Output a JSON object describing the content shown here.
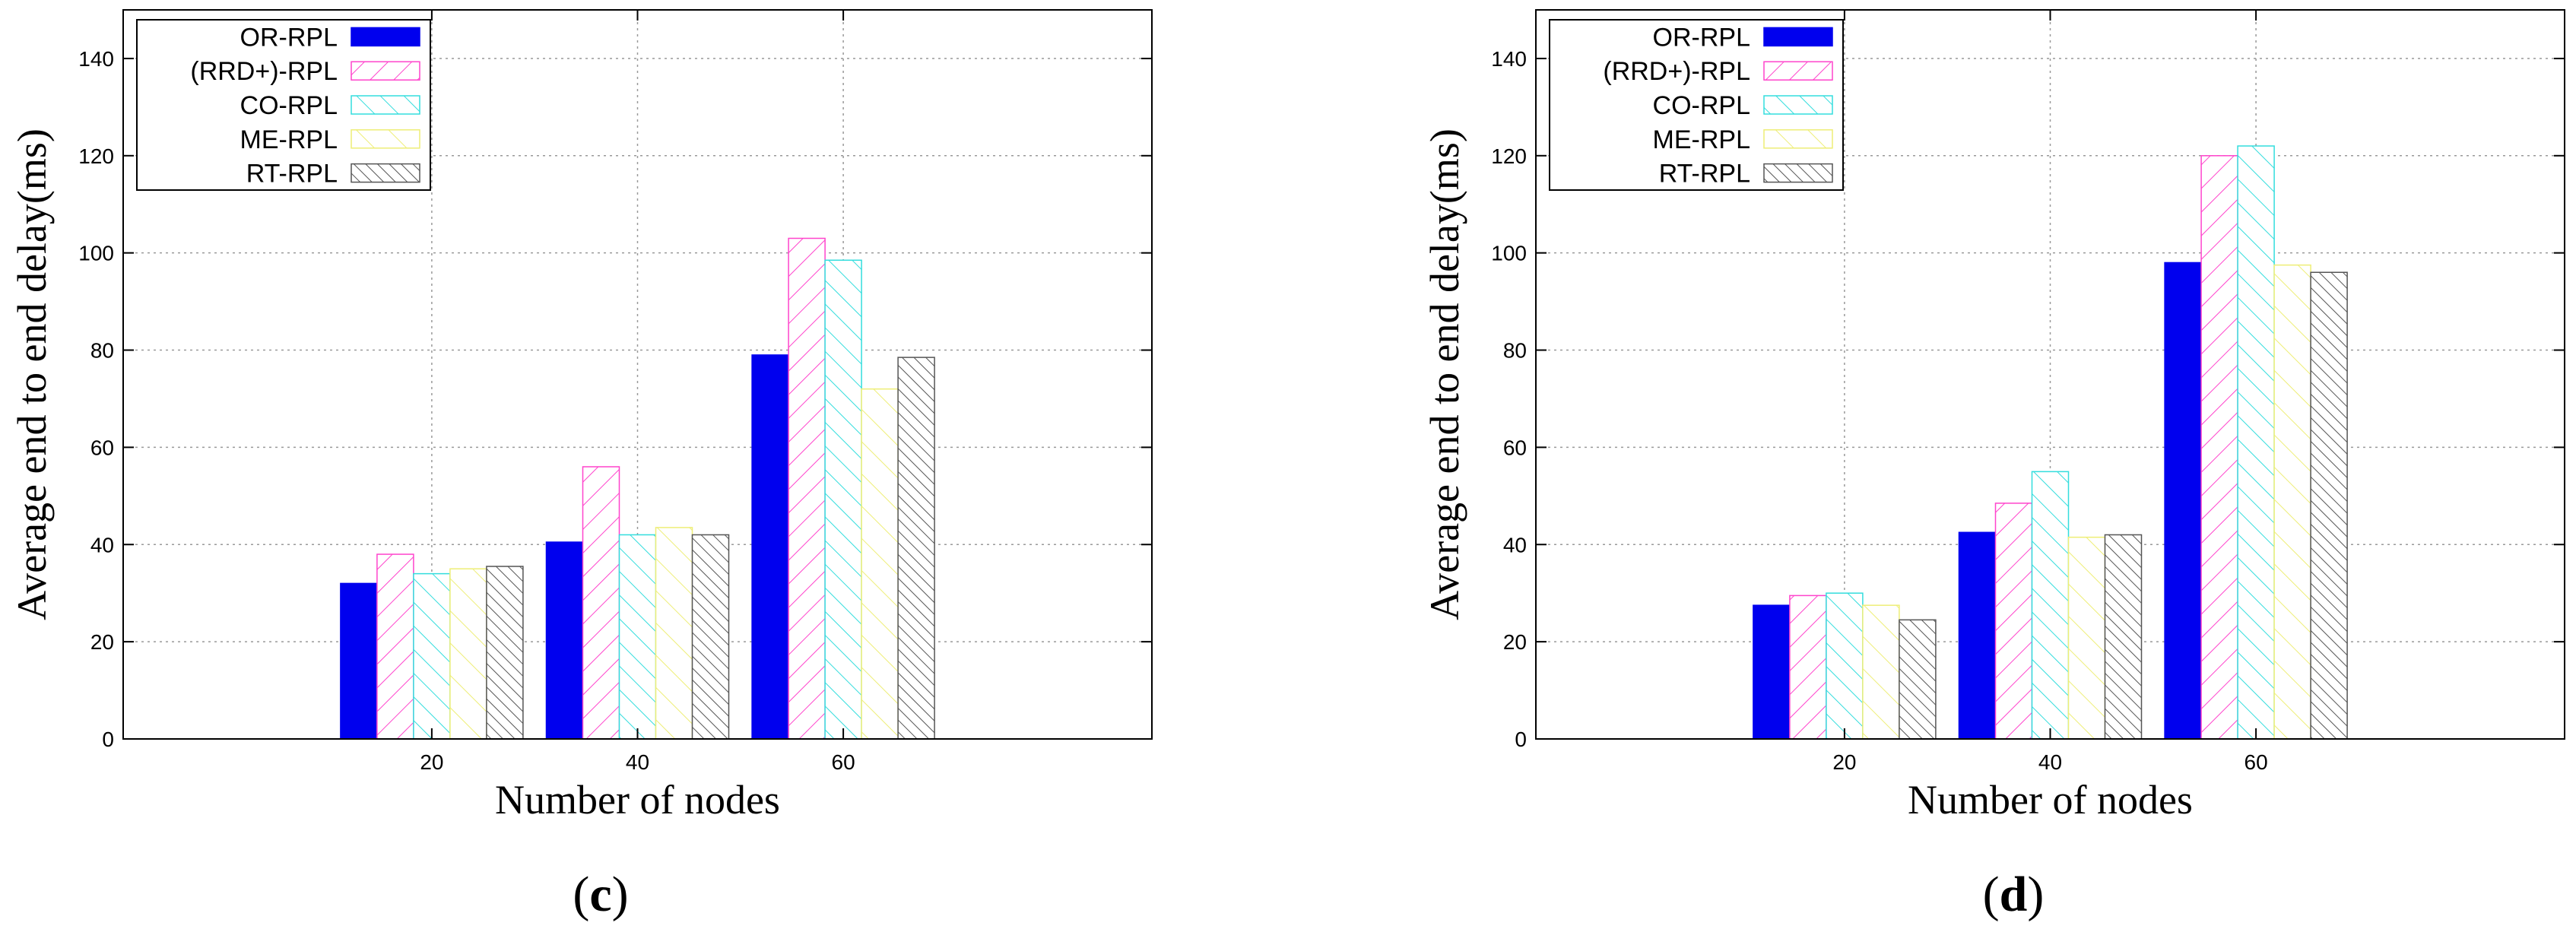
{
  "colors": {
    "OR-RPL": "#0000ee",
    "(RRD+)-RPL": "#ff44cc",
    "CO-RPL": "#33dddd",
    "ME-RPL": "#eeee77",
    "RT-RPL": "#555555"
  },
  "chart_data": [
    {
      "type": "bar",
      "panel_label": "c",
      "title": "",
      "xlabel": "Number of nodes",
      "ylabel": "Average end to end delay(ms)",
      "categories": [
        "20",
        "40",
        "60"
      ],
      "ylim": [
        0,
        150
      ],
      "yticks": [
        "0",
        "20",
        "40",
        "60",
        "80",
        "100",
        "120",
        "140"
      ],
      "grid": true,
      "legend_position": "top-left",
      "series": [
        {
          "name": "OR-RPL",
          "pattern": "solid",
          "values": [
            32,
            40.5,
            79
          ]
        },
        {
          "name": "(RRD+)-RPL",
          "pattern": "hatch-down",
          "values": [
            38,
            56,
            103
          ]
        },
        {
          "name": "CO-RPL",
          "pattern": "hatch-up",
          "values": [
            34,
            42,
            98.5
          ]
        },
        {
          "name": "ME-RPL",
          "pattern": "hatch-up-sparse",
          "values": [
            35,
            43.5,
            72
          ]
        },
        {
          "name": "RT-RPL",
          "pattern": "hatch-dense",
          "values": [
            35.5,
            42,
            78.5
          ]
        }
      ]
    },
    {
      "type": "bar",
      "panel_label": "d",
      "title": "",
      "xlabel": "Number of nodes",
      "ylabel": "Average end to end delay(ms)",
      "categories": [
        "20",
        "40",
        "60"
      ],
      "ylim": [
        0,
        150
      ],
      "yticks": [
        "0",
        "20",
        "40",
        "60",
        "80",
        "100",
        "120",
        "140"
      ],
      "grid": true,
      "legend_position": "top-left",
      "series": [
        {
          "name": "OR-RPL",
          "pattern": "solid",
          "values": [
            27.5,
            42.5,
            98
          ]
        },
        {
          "name": "(RRD+)-RPL",
          "pattern": "hatch-down",
          "values": [
            29.5,
            48.5,
            120
          ]
        },
        {
          "name": "CO-RPL",
          "pattern": "hatch-up",
          "values": [
            30,
            55,
            122
          ]
        },
        {
          "name": "ME-RPL",
          "pattern": "hatch-up-sparse",
          "values": [
            27.5,
            41.5,
            97.5
          ]
        },
        {
          "name": "RT-RPL",
          "pattern": "hatch-dense",
          "values": [
            24.5,
            42,
            96
          ]
        }
      ]
    }
  ]
}
